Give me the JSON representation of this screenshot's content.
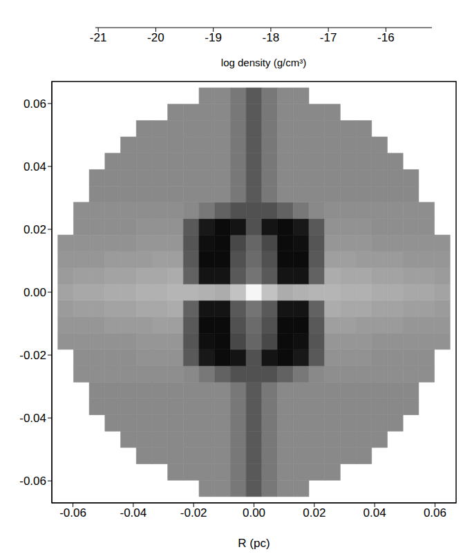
{
  "chart_data": {
    "type": "heatmap",
    "xlabel": "R (pc)",
    "xlim": [
      -0.067,
      0.067
    ],
    "ylim": [
      -0.067,
      0.067
    ],
    "xticks": [
      -0.06,
      -0.04,
      -0.02,
      {
        "value": 0,
        "label": "0.00"
      },
      0.02,
      0.04,
      0.06
    ],
    "yticks": [
      -0.06,
      -0.04,
      -0.02,
      {
        "value": 0,
        "label": "0.00"
      },
      0.02,
      0.04,
      0.06
    ],
    "x": [
      -0.0624,
      -0.0572,
      -0.052,
      -0.0468,
      -0.0416,
      -0.0364,
      -0.0312,
      -0.026,
      -0.0208,
      -0.0156,
      -0.0104,
      -0.0052,
      0,
      0.0052,
      0.0104,
      0.0156,
      0.0208,
      0.026,
      0.0312,
      0.0364,
      0.0416,
      0.0468,
      0.052,
      0.0572,
      0.0624
    ],
    "y": [
      -0.0624,
      -0.0572,
      -0.052,
      -0.0468,
      -0.0416,
      -0.0364,
      -0.0312,
      -0.026,
      -0.0208,
      -0.0156,
      -0.0104,
      -0.0052,
      0,
      0.0052,
      0.0104,
      0.0156,
      0.0208,
      0.026,
      0.0312,
      0.0364,
      0.0416,
      0.0468,
      0.052,
      0.0572,
      0.0624
    ],
    "values": [
      [
        null,
        null,
        null,
        null,
        null,
        null,
        null,
        null,
        null,
        -17.9,
        -17.9,
        -18.3,
        -19.0,
        -18.3,
        -17.9,
        -17.9,
        null,
        null,
        null,
        null,
        null,
        null,
        null,
        null,
        null
      ],
      [
        null,
        null,
        null,
        null,
        null,
        null,
        null,
        -17.9,
        -17.9,
        -17.9,
        -17.9,
        -18.3,
        -19.0,
        -18.3,
        -17.9,
        -17.9,
        -17.9,
        -17.9,
        null,
        null,
        null,
        null,
        null,
        null,
        null
      ],
      [
        null,
        null,
        null,
        null,
        null,
        -17.9,
        -17.9,
        -17.9,
        -17.9,
        -17.9,
        -17.9,
        -18.3,
        -19.0,
        -18.3,
        -17.9,
        -17.9,
        -17.9,
        -17.9,
        -17.9,
        -17.9,
        null,
        null,
        null,
        null,
        null
      ],
      [
        null,
        null,
        null,
        null,
        -17.9,
        -17.9,
        -17.9,
        -17.9,
        -17.9,
        -17.9,
        -17.9,
        -18.3,
        -19.0,
        -18.3,
        -17.9,
        -17.9,
        -17.9,
        -17.9,
        -17.9,
        -17.9,
        -17.9,
        null,
        null,
        null,
        null
      ],
      [
        null,
        null,
        null,
        -17.9,
        -17.9,
        -17.9,
        -17.9,
        -17.9,
        -17.9,
        -17.9,
        -17.9,
        -18.3,
        -19.0,
        -18.3,
        -17.9,
        -17.9,
        -17.9,
        -17.9,
        -17.9,
        -17.9,
        -17.9,
        -17.9,
        null,
        null,
        null
      ],
      [
        null,
        null,
        -17.9,
        -17.9,
        -17.9,
        -17.9,
        -17.9,
        -17.9,
        -17.9,
        -17.9,
        -17.9,
        -18.3,
        -19.0,
        -18.3,
        -17.9,
        -17.9,
        -17.9,
        -17.9,
        -17.9,
        -17.9,
        -17.9,
        -17.9,
        -17.9,
        null,
        null
      ],
      [
        null,
        null,
        -17.9,
        -17.9,
        -17.9,
        -17.9,
        -17.9,
        -17.9,
        -17.9,
        -17.9,
        -17.9,
        -18.3,
        -19.0,
        -18.3,
        -17.9,
        -17.9,
        -17.9,
        -17.9,
        -17.9,
        -17.9,
        -17.9,
        -17.9,
        -17.9,
        null,
        null
      ],
      [
        null,
        -17.8,
        -17.8,
        -17.8,
        -17.8,
        -17.8,
        -17.8,
        -17.8,
        -17.9,
        -18.3,
        -18.8,
        -19.2,
        -19.2,
        -19.2,
        -18.8,
        -18.3,
        -17.9,
        -17.8,
        -17.8,
        -17.8,
        -17.8,
        -17.8,
        -17.8,
        -17.8,
        null
      ],
      [
        null,
        -17.8,
        -17.8,
        -17.8,
        -17.8,
        -17.7,
        -17.7,
        -17.7,
        -19.0,
        -20.5,
        -20.8,
        -20.6,
        -19.2,
        -20.6,
        -20.8,
        -20.5,
        -19.0,
        -17.7,
        -17.7,
        -17.7,
        -17.8,
        -17.8,
        -17.8,
        -17.8,
        null
      ],
      [
        -17.7,
        -17.7,
        -17.7,
        -17.7,
        -17.7,
        -17.6,
        -17.6,
        -17.6,
        -19.1,
        -20.7,
        -20.8,
        -19.4,
        -18.7,
        -19.4,
        -20.8,
        -20.7,
        -19.1,
        -17.6,
        -17.6,
        -17.6,
        -17.7,
        -17.7,
        -17.7,
        -17.7,
        -17.7
      ],
      [
        -17.6,
        -17.6,
        -17.6,
        -17.5,
        -17.5,
        -17.5,
        -17.4,
        -17.4,
        -19.0,
        -20.8,
        -20.8,
        -19.2,
        -18.6,
        -19.2,
        -20.8,
        -20.8,
        -19.0,
        -17.4,
        -17.4,
        -17.5,
        -17.5,
        -17.5,
        -17.6,
        -17.6,
        -17.6
      ],
      [
        -17.5,
        -17.4,
        -17.4,
        -17.3,
        -17.3,
        -17.2,
        -17.2,
        -17.1,
        -18.8,
        -20.6,
        -20.6,
        -19.0,
        -18.4,
        -19.0,
        -20.6,
        -20.6,
        -18.8,
        -17.1,
        -17.2,
        -17.2,
        -17.3,
        -17.3,
        -17.4,
        -17.4,
        -17.5
      ],
      [
        -17.3,
        -17.2,
        -17.2,
        -17.1,
        -17.1,
        -17.0,
        -17.0,
        -16.9,
        -16.9,
        -17.0,
        -17.1,
        -16.6,
        -15.4,
        -16.6,
        -17.1,
        -17.0,
        -16.9,
        -16.9,
        -17.0,
        -17.0,
        -17.1,
        -17.1,
        -17.2,
        -17.2,
        -17.3
      ],
      [
        -17.5,
        -17.4,
        -17.4,
        -17.3,
        -17.3,
        -17.2,
        -17.2,
        -17.1,
        -18.8,
        -20.6,
        -20.6,
        -19.0,
        -18.4,
        -19.0,
        -20.6,
        -20.6,
        -18.8,
        -17.1,
        -17.2,
        -17.2,
        -17.3,
        -17.3,
        -17.4,
        -17.4,
        -17.5
      ],
      [
        -17.6,
        -17.6,
        -17.6,
        -17.5,
        -17.5,
        -17.5,
        -17.4,
        -17.4,
        -19.0,
        -20.8,
        -20.8,
        -19.2,
        -18.6,
        -19.2,
        -20.8,
        -20.8,
        -19.0,
        -17.4,
        -17.4,
        -17.5,
        -17.5,
        -17.5,
        -17.6,
        -17.6,
        -17.6
      ],
      [
        -17.7,
        -17.7,
        -17.7,
        -17.7,
        -17.7,
        -17.6,
        -17.6,
        -17.6,
        -19.1,
        -20.7,
        -20.8,
        -19.4,
        -18.7,
        -19.4,
        -20.8,
        -20.7,
        -19.1,
        -17.6,
        -17.6,
        -17.6,
        -17.7,
        -17.7,
        -17.7,
        -17.7,
        -17.7
      ],
      [
        null,
        -17.8,
        -17.8,
        -17.8,
        -17.8,
        -17.7,
        -17.7,
        -17.7,
        -19.0,
        -20.5,
        -20.8,
        -20.6,
        -19.2,
        -20.6,
        -20.8,
        -20.5,
        -19.0,
        -17.7,
        -17.7,
        -17.7,
        -17.8,
        -17.8,
        -17.8,
        -17.8,
        null
      ],
      [
        null,
        -17.8,
        -17.8,
        -17.8,
        -17.8,
        -17.8,
        -17.8,
        -17.8,
        -17.9,
        -18.3,
        -18.8,
        -19.2,
        -19.2,
        -19.2,
        -18.8,
        -18.3,
        -17.9,
        -17.8,
        -17.8,
        -17.8,
        -17.8,
        -17.8,
        -17.8,
        -17.8,
        null
      ],
      [
        null,
        null,
        -17.9,
        -17.9,
        -17.9,
        -17.9,
        -17.9,
        -17.9,
        -17.9,
        -17.9,
        -17.9,
        -18.3,
        -19.0,
        -18.3,
        -17.9,
        -17.9,
        -17.9,
        -17.9,
        -17.9,
        -17.9,
        -17.9,
        -17.9,
        -17.9,
        null,
        null
      ],
      [
        null,
        null,
        -17.9,
        -17.9,
        -17.9,
        -17.9,
        -17.9,
        -17.9,
        -17.9,
        -17.9,
        -17.9,
        -18.3,
        -19.0,
        -18.3,
        -17.9,
        -17.9,
        -17.9,
        -17.9,
        -17.9,
        -17.9,
        -17.9,
        -17.9,
        -17.9,
        null,
        null
      ],
      [
        null,
        null,
        null,
        -17.9,
        -17.9,
        -17.9,
        -17.9,
        -17.9,
        -17.9,
        -17.9,
        -17.9,
        -18.3,
        -19.0,
        -18.3,
        -17.9,
        -17.9,
        -17.9,
        -17.9,
        -17.9,
        -17.9,
        -17.9,
        -17.9,
        null,
        null,
        null
      ],
      [
        null,
        null,
        null,
        null,
        -17.9,
        -17.9,
        -17.9,
        -17.9,
        -17.9,
        -17.9,
        -17.9,
        -18.3,
        -19.0,
        -18.3,
        -17.9,
        -17.9,
        -17.9,
        -17.9,
        -17.9,
        -17.9,
        -17.9,
        null,
        null,
        null,
        null
      ],
      [
        null,
        null,
        null,
        null,
        null,
        -17.9,
        -17.9,
        -17.9,
        -17.9,
        -17.9,
        -17.9,
        -18.3,
        -19.0,
        -18.3,
        -17.9,
        -17.9,
        -17.9,
        -17.9,
        -17.9,
        -17.9,
        null,
        null,
        null,
        null,
        null
      ],
      [
        null,
        null,
        null,
        null,
        null,
        null,
        null,
        -17.9,
        -17.9,
        -17.9,
        -17.9,
        -18.3,
        -19.0,
        -18.3,
        -17.9,
        -17.9,
        -17.9,
        -17.9,
        null,
        null,
        null,
        null,
        null,
        null,
        null
      ],
      [
        null,
        null,
        null,
        null,
        null,
        null,
        null,
        null,
        null,
        -17.9,
        -17.9,
        -18.3,
        -19.0,
        -18.3,
        -17.9,
        -17.9,
        null,
        null,
        null,
        null,
        null,
        null,
        null,
        null,
        null
      ]
    ],
    "colorbar": {
      "label": "log density (g/cm³)",
      "range": [
        -21.05,
        -15.2
      ],
      "ticks": [
        -21,
        -20,
        -19,
        -18,
        -17,
        -16
      ],
      "colors": [
        "#000000",
        "#ffffff"
      ]
    }
  }
}
